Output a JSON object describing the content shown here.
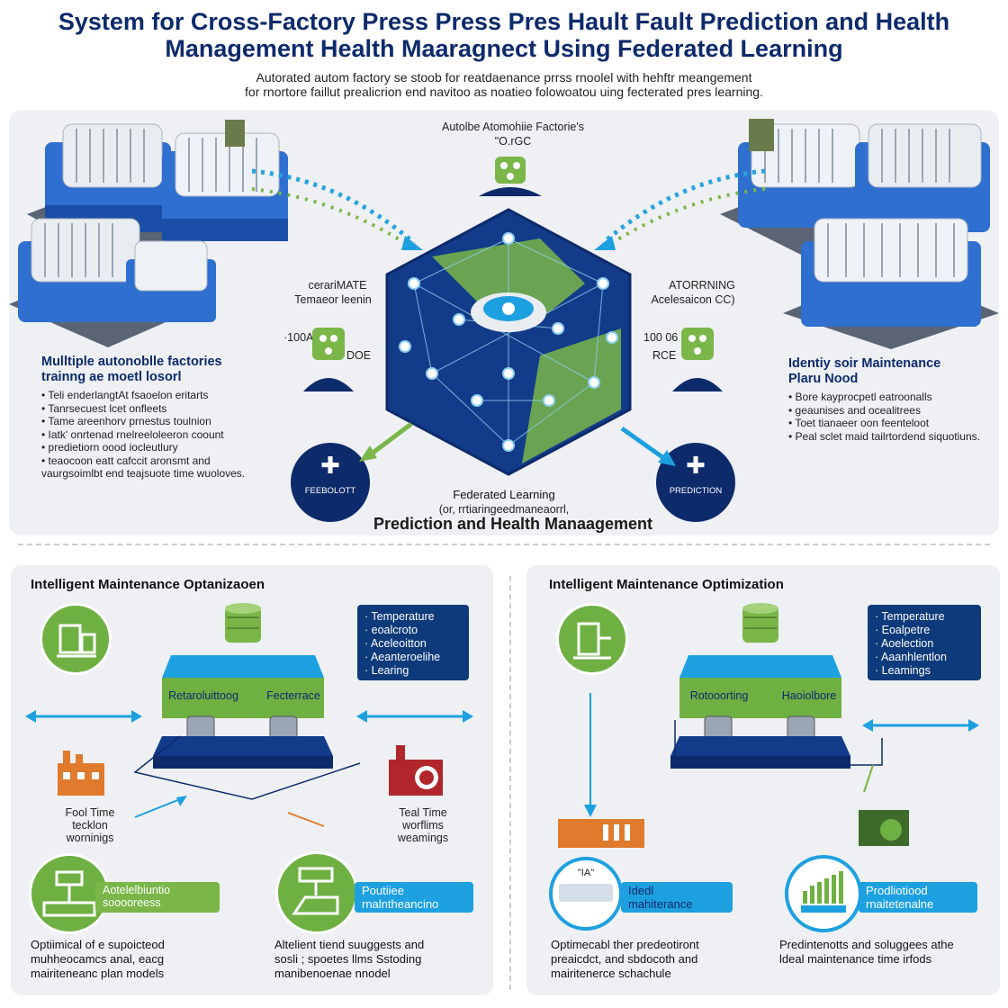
{
  "header": {
    "title_line1": "System for Cross-Factory Press Press Pres Hault Fault Prediction and Health",
    "title_line2": "Management Health Maaragnect Using Federated Learning",
    "subtitle_line1": "Autorated autom factory se stoob for reatdaenance prrss rnoolel with hehftr meangement",
    "subtitle_line2": "for rnortore faillut prealicrion end navitoo as noatieo folowoatou uing fecterated pres learning."
  },
  "top": {
    "center_label": "Autolbe Atomohiie Factorie's",
    "center_sublabel": "\"O.rGC",
    "left_node_label": "cerariMATE",
    "left_node_sublabel": "Temaeor leenin",
    "left_node_tag": "·100AE",
    "left_node_tag2": "DOE",
    "right_node_label": "ATORRNING",
    "right_node_sublabel": "Acelesaicon CC)",
    "right_node_tag": "100 06",
    "right_node_tag2": "RCE",
    "left_heading_line1": "Mulltiple autonoblle factories",
    "left_heading_line2": "trainng ae moetl losorl",
    "left_bullets": [
      "Teli enderlangtAt fsaoelon eritarts",
      "Tanrsecuest lcet onfleets",
      "Tame areenhorv prnestus toulnion",
      "Iatk' onrtenad rnelreeloleeron coount",
      "predietiorn oood iocleutlury",
      "teaocoon eatt cafccit aronsmt and vaurgsoimlbt end teajsuote time wuoloves."
    ],
    "right_heading_line1": "Identiy soir Maintenance",
    "right_heading_line2": "Plaru Nood",
    "right_bullets": [
      "Bore kayprocpetl eatroonalls",
      "geaunises and ocealitrees",
      "Toet tianaeer oon feenteloot",
      "Peal sclet maid tailrtordend siquotiuns."
    ],
    "left_circle_label": "FEEBOLOTT",
    "right_circle_label": "PREDICTION",
    "fed_label": "Federated Learning",
    "fed_sublabel": "(or, rrtiaringeedmaneaorrl,",
    "bottom_title": "Prediction and Health Manaagement"
  },
  "bottom_left": {
    "heading": "Intelligent Maintenance Optanizaoen",
    "box_items": [
      "Temperature",
      "eoalcroto",
      "Aceleoitton",
      "Aeanteroelihe",
      "Learing"
    ],
    "block_label_left": "Retaroluittoog",
    "block_label_right": "Fecterrace",
    "warn_left_line1": "Fool Time",
    "warn_left_line2": "tecklon",
    "warn_left_line3": "worninigs",
    "warn_right_line1": "Teal Time",
    "warn_right_line2": "worflims",
    "warn_right_line3": "weamings",
    "tag_left": "Aotelelbiuntio sooooreess",
    "tag_right_line1": "Poutiiee",
    "tag_right_line2": "rnalntheancino",
    "caption_left_line1": "Optiimical of e supoicteod",
    "caption_left_line2": "muhheocamcs anal, eacg",
    "caption_left_line3": "mairiteneanc plan models",
    "caption_right_line1": "Altelient tiend suuggests and",
    "caption_right_line2": "sosli ; spoetes llms Sstoding",
    "caption_right_line3": "manibenoenae nnodel"
  },
  "bottom_right": {
    "heading": "Intelligent Maintenance Optimization",
    "box_items": [
      "Temperature",
      "Eoalpetre",
      "Aoelection",
      "Aaanhlentlon",
      "Leamings"
    ],
    "block_label_left": "Rotooorting",
    "block_label_right": "Haoiolbore",
    "tag_left_line1": "Idedl",
    "tag_left_line2": "mahiterance",
    "tag_right_line1": "Prodliotiood",
    "tag_right_line2": "rnaitetenalne",
    "caption_left_line1": "Optimecabl ther predeotiront",
    "caption_left_line2": "preaicdct, and sbdocoth and",
    "caption_left_line3": "mairitenerce schachule",
    "caption_right_line1": "Predintenotts and soluggees athe",
    "caption_right_line2": "ldeal maintenance time irfods",
    "screen_text": "\"IA\""
  },
  "colors": {
    "navy": "#0d2a6b",
    "blue": "#1da0e0",
    "green": "#6fb043",
    "panel": "#eef0f3"
  }
}
